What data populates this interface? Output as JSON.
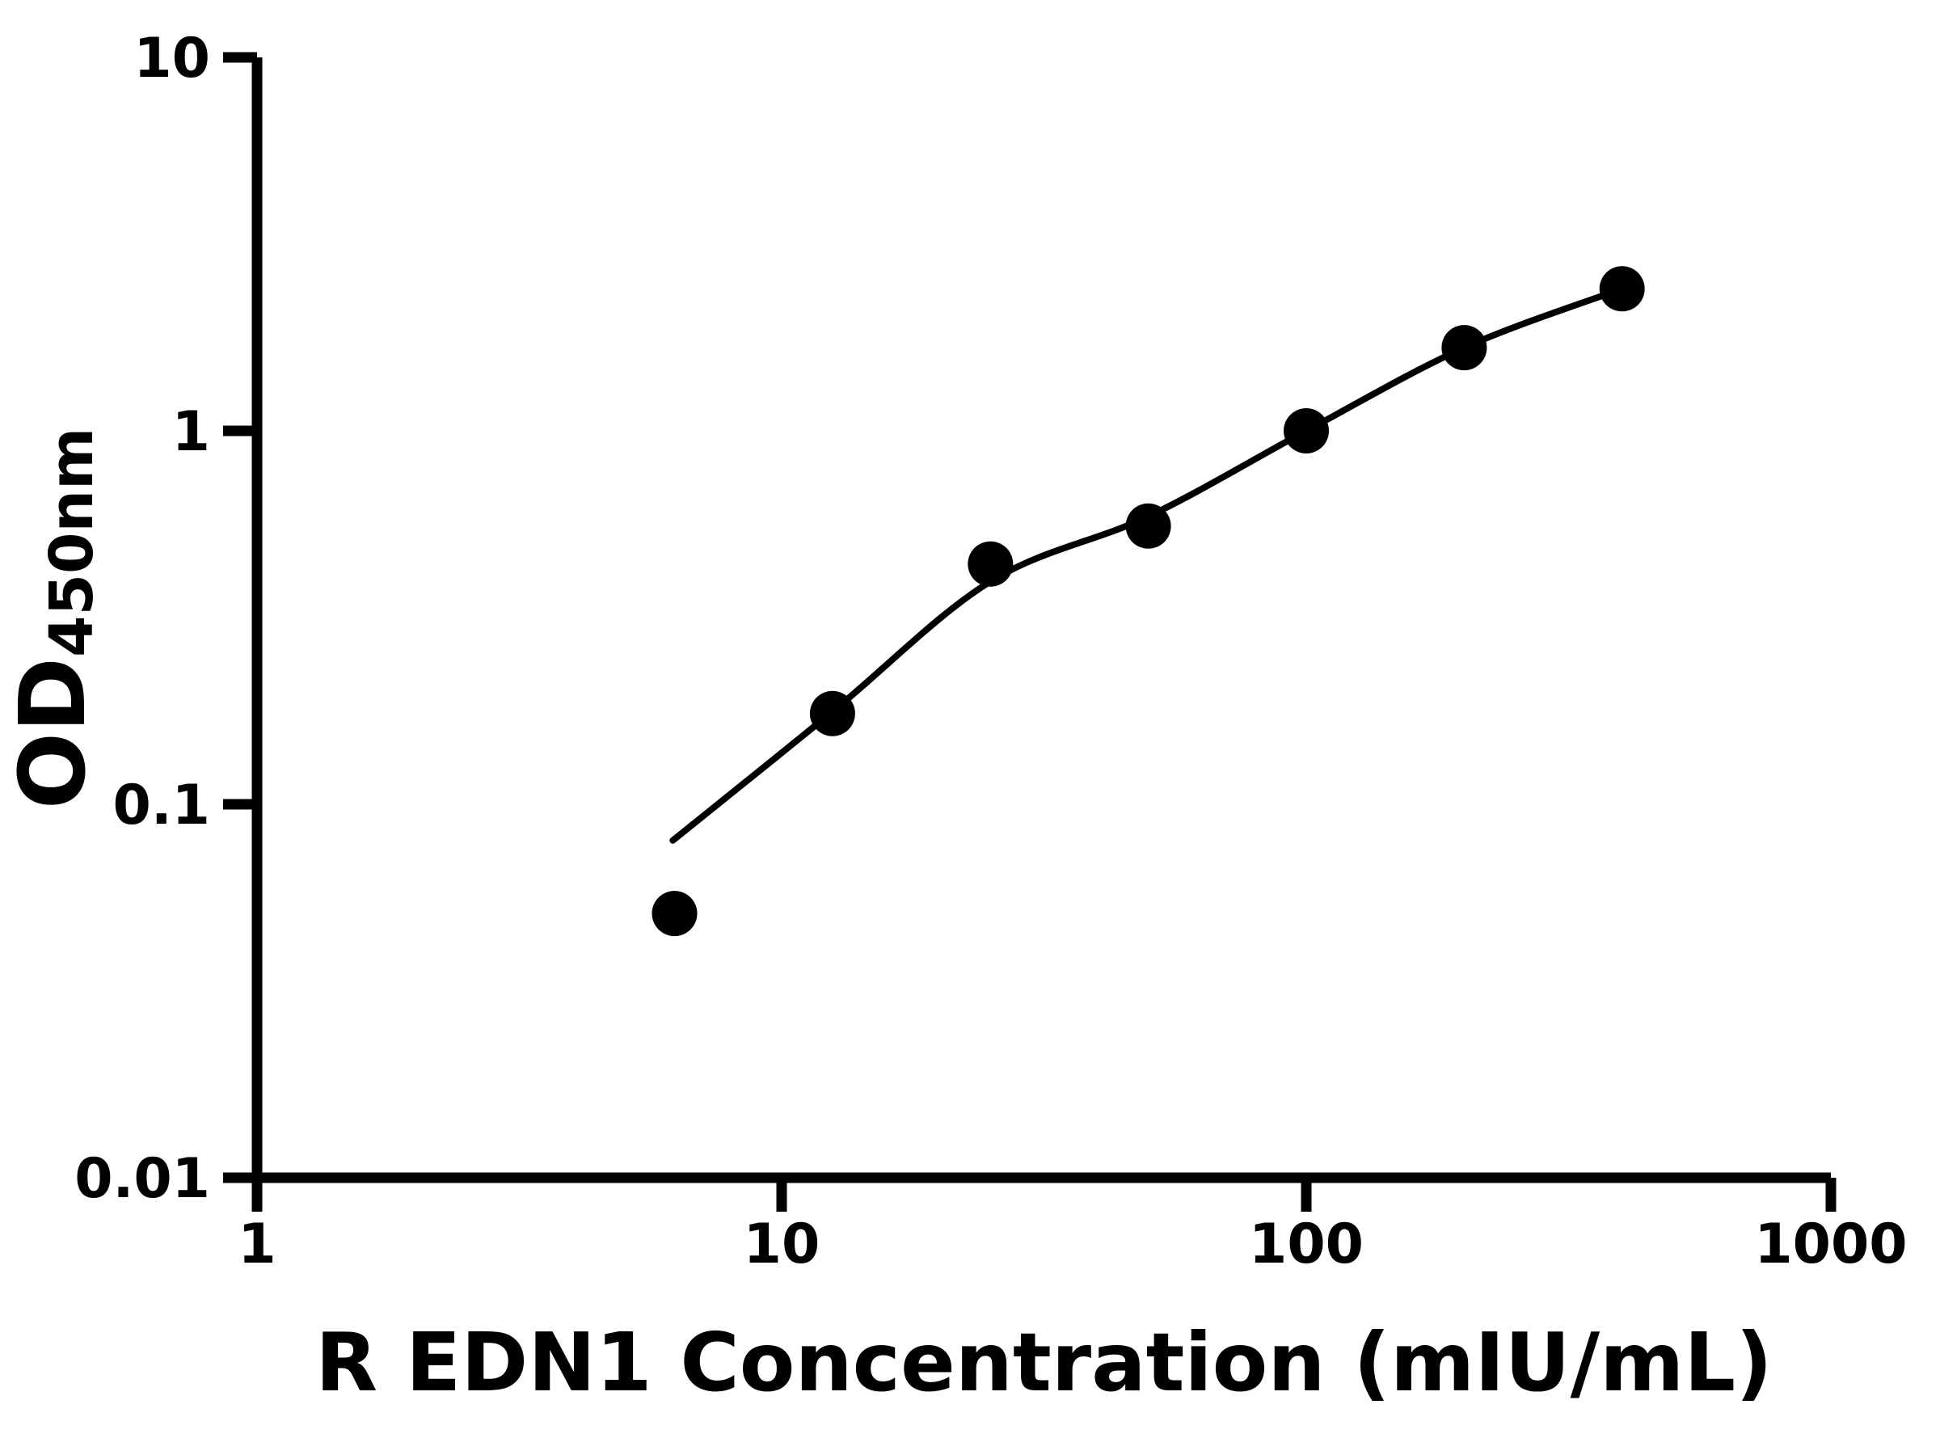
{
  "figure": {
    "background_color": "#ffffff",
    "foreground_color": "#000000"
  },
  "chart_data": {
    "type": "scatter",
    "title": "",
    "xlabel": "R EDN1 Concentration (mIU/mL)",
    "ylabel_main": "OD",
    "ylabel_sub": "450nm",
    "x_scale": "log",
    "y_scale": "log",
    "xlim": [
      1,
      1000
    ],
    "ylim": [
      0.01,
      10
    ],
    "x_ticks": [
      1,
      10,
      100,
      1000
    ],
    "x_tick_labels": [
      "1",
      "10",
      "100",
      "1000"
    ],
    "y_ticks": [
      0.01,
      0.1,
      1,
      10
    ],
    "y_tick_labels": [
      "0.01",
      "0.1",
      "1",
      "10"
    ],
    "grid": false,
    "legend": "none",
    "marker_color": "#000000",
    "line_color": "#000000",
    "series": [
      {
        "name": "standard-points",
        "type": "scatter",
        "marker": "filled-circle",
        "x": [
          6.25,
          12.5,
          25,
          50,
          100,
          200,
          400
        ],
        "y": [
          0.051,
          0.175,
          0.44,
          0.556,
          1.0,
          1.67,
          2.4
        ]
      },
      {
        "name": "fit-curve",
        "type": "line",
        "x": [
          6.2,
          12.5,
          25,
          50,
          100,
          200,
          400
        ],
        "y": [
          0.08,
          0.177,
          0.395,
          0.59,
          1.0,
          1.67,
          2.4
        ]
      }
    ]
  }
}
